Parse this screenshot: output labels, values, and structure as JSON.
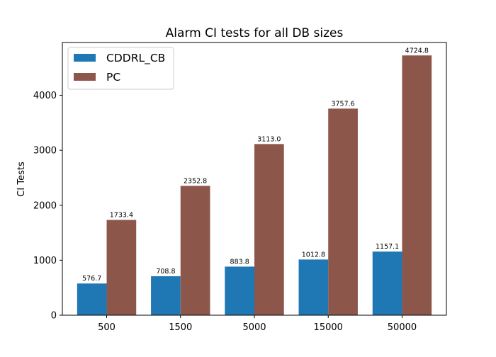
{
  "chart_data": {
    "type": "bar",
    "title": "Alarm CI tests for all DB sizes",
    "xlabel": "",
    "ylabel": "CI Tests",
    "categories": [
      "500",
      "1500",
      "5000",
      "15000",
      "50000"
    ],
    "series": [
      {
        "name": "CDDRL_CB",
        "color": "#1f77b4",
        "values": [
          576.7,
          708.8,
          883.8,
          1012.8,
          1157.1
        ],
        "labels": [
          "576.7",
          "708.8",
          "883.8",
          "1012.8",
          "1157.1"
        ]
      },
      {
        "name": "PC",
        "color": "#8c564b",
        "values": [
          1733.4,
          2352.8,
          3113.0,
          3757.6,
          4724.8
        ],
        "labels": [
          "1733.4",
          "2352.8",
          "3113.0",
          "3757.6",
          "4724.8"
        ]
      }
    ],
    "ylim": [
      0,
      4960
    ],
    "yticks": [
      0,
      1000,
      2000,
      3000,
      4000
    ],
    "grid": false,
    "legend": "top-left"
  }
}
